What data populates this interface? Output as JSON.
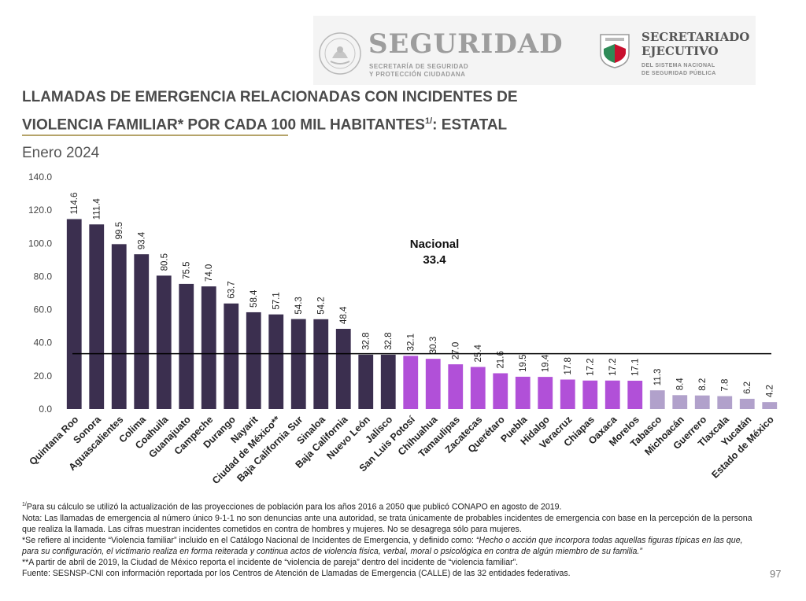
{
  "header": {
    "seal_text": "ESTADOS UNIDOS MEXICANOS",
    "seguridad_title": "SEGURIDAD",
    "seguridad_sub1": "SECRETARÍA DE SEGURIDAD",
    "seguridad_sub2": "Y PROTECCIÓN CIUDADANA",
    "sesnsp_title1": "SECRETARIADO",
    "sesnsp_title2": "EJECUTIVO",
    "sesnsp_sub1": "DEL SISTEMA NACIONAL",
    "sesnsp_sub2": "DE SEGURIDAD PÚBLICA"
  },
  "title_line1": "LLAMADAS DE EMERGENCIA RELACIONADAS CON INCIDENTES DE",
  "title_line2": "VIOLENCIA FAMILIAR* POR CADA 100 MIL HABITANTES",
  "title_sup": "1/",
  "title_suffix": ": ESTATAL",
  "subtitle": "Enero 2024",
  "colors": {
    "dark": "#3b2f4f",
    "medium": "#b150d8",
    "light": "#b1a1cb",
    "reference": "#000000"
  },
  "chart_data": {
    "type": "bar",
    "categories": [
      "Quintana Roo",
      "Sonora",
      "Aguascalientes",
      "Colima",
      "Coahuila",
      "Guanajuato",
      "Campeche",
      "Durango",
      "Nayarit",
      "Ciudad de México**",
      "Baja California Sur",
      "Sinaloa",
      "Baja California",
      "Nuevo León",
      "Jalisco",
      "San Luis Potosí",
      "Chihuahua",
      "Tamaulipas",
      "Zacatecas",
      "Querétaro",
      "Puebla",
      "Hidalgo",
      "Veracruz",
      "Chiapas",
      "Oaxaca",
      "Morelos",
      "Tabasco",
      "Michoacán",
      "Guerrero",
      "Tlaxcala",
      "Yucatán",
      "Estado de México"
    ],
    "values": [
      114.6,
      111.4,
      99.5,
      93.4,
      80.5,
      75.5,
      74.0,
      63.7,
      58.4,
      57.1,
      54.3,
      54.2,
      48.4,
      32.8,
      32.8,
      32.1,
      30.3,
      27.0,
      25.4,
      21.6,
      19.5,
      19.4,
      17.8,
      17.2,
      17.2,
      17.1,
      11.3,
      8.4,
      8.2,
      7.8,
      6.2,
      4.2
    ],
    "value_labels": [
      "114.6",
      "111.4",
      "99.5",
      "93.4",
      "80.5",
      "75.5",
      "74.0",
      "63.7",
      "58.4",
      "57.1",
      "54.3",
      "54.2",
      "48.4",
      "32.8",
      "32.8",
      "32.1",
      "30.3",
      "27.0",
      "25.4",
      "21.6",
      "19.5",
      "19.4",
      "17.8",
      "17.2",
      "17.2",
      "17.1",
      "11.3",
      "8.4",
      "8.2",
      "7.8",
      "6.2",
      "4.2"
    ],
    "color_groups": [
      "dark",
      "dark",
      "dark",
      "dark",
      "dark",
      "dark",
      "dark",
      "dark",
      "dark",
      "dark",
      "dark",
      "dark",
      "dark",
      "dark",
      "dark",
      "medium",
      "medium",
      "medium",
      "medium",
      "medium",
      "medium",
      "medium",
      "medium",
      "medium",
      "medium",
      "medium",
      "light",
      "light",
      "light",
      "light",
      "light",
      "light"
    ],
    "ylim": [
      0,
      140
    ],
    "yticks": [
      "0.0",
      "20.0",
      "40.0",
      "60.0",
      "80.0",
      "100.0",
      "120.0",
      "140.0"
    ],
    "reference_line": {
      "label": "Nacional",
      "value_label": "33.4",
      "value": 33.4
    },
    "grid": false,
    "legend": "none"
  },
  "footnotes": {
    "f1_sup": "1/",
    "f1": "Para su cálculo se utilizó la actualización de las proyecciones de población para los años 2016 a 2050 que publicó CONAPO en agosto de 2019.",
    "nota": "Nota: Las llamadas de emergencia al número único 9-1-1 no son denuncias ante una autoridad, se trata únicamente de probables incidentes de emergencia con base en la percepción de la persona que realiza la llamada. Las cifras muestran incidentes cometidos en contra de hombres y mujeres. No se desagrega sólo para mujeres.",
    "f2_prefix": "*Se refiere al incidente “Violencia familiar” incluido en el Catálogo Nacional de Incidentes de Emergencia, y definido como: ",
    "f2_italic": "“Hecho o acción que incorpora todas aquellas figuras típicas en las que, para su configuración, el victimario realiza en forma reiterada y continua actos de violencia física, verbal, moral o psicológica en contra de algún miembro de su familia.”",
    "f3": "**A partir de abril de 2019, la Ciudad de México reporta el incidente de “violencia de pareja” dentro del incidente de “violencia familiar”.",
    "fuente": "Fuente: SESNSP-CNI con información reportada por los Centros de Atención de Llamadas de Emergencia (CALLE) de las 32 entidades federativas."
  },
  "page_number": "97"
}
